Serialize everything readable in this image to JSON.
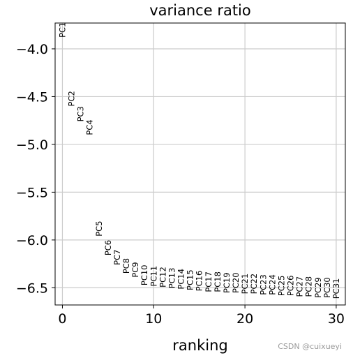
{
  "chart_data": {
    "type": "scatter",
    "title": "variance ratio",
    "xlabel": "ranking",
    "ylabel": "",
    "xlim": [
      -0.8,
      31.0
    ],
    "ylim": [
      -6.68,
      -3.73
    ],
    "grid": true,
    "xticks": [
      0,
      10,
      20,
      30
    ],
    "xtick_labels": [
      "0",
      "10",
      "20",
      "30"
    ],
    "yticks": [
      -4.0,
      -4.5,
      -5.0,
      -5.5,
      -6.0,
      -6.5
    ],
    "ytick_labels": [
      "−4.0",
      "−4.5",
      "−5.0",
      "−5.5",
      "−6.0",
      "−6.5"
    ],
    "points": [
      {
        "label": "PC1",
        "x": 0,
        "y": -3.72
      },
      {
        "label": "PC2",
        "x": 1,
        "y": -4.44
      },
      {
        "label": "PC3",
        "x": 2,
        "y": -4.6
      },
      {
        "label": "PC4",
        "x": 3,
        "y": -4.74
      },
      {
        "label": "PC5",
        "x": 4,
        "y": -5.8
      },
      {
        "label": "PC6",
        "x": 5,
        "y": -6.0
      },
      {
        "label": "PC7",
        "x": 6,
        "y": -6.1
      },
      {
        "label": "PC8",
        "x": 7,
        "y": -6.19
      },
      {
        "label": "PC9",
        "x": 8,
        "y": -6.23
      },
      {
        "label": "PC10",
        "x": 9,
        "y": -6.26
      },
      {
        "label": "PC11",
        "x": 10,
        "y": -6.27
      },
      {
        "label": "PC12",
        "x": 11,
        "y": -6.28
      },
      {
        "label": "PC13",
        "x": 12,
        "y": -6.29
      },
      {
        "label": "PC14",
        "x": 13,
        "y": -6.3
      },
      {
        "label": "PC15",
        "x": 14,
        "y": -6.31
      },
      {
        "label": "PC16",
        "x": 15,
        "y": -6.32
      },
      {
        "label": "PC17",
        "x": 16,
        "y": -6.33
      },
      {
        "label": "PC18",
        "x": 17,
        "y": -6.33
      },
      {
        "label": "PC19",
        "x": 18,
        "y": -6.34
      },
      {
        "label": "PC20",
        "x": 19,
        "y": -6.34
      },
      {
        "label": "PC21",
        "x": 20,
        "y": -6.35
      },
      {
        "label": "PC22",
        "x": 21,
        "y": -6.35
      },
      {
        "label": "PC23",
        "x": 22,
        "y": -6.36
      },
      {
        "label": "PC24",
        "x": 23,
        "y": -6.36
      },
      {
        "label": "PC25",
        "x": 24,
        "y": -6.37
      },
      {
        "label": "PC26",
        "x": 25,
        "y": -6.37
      },
      {
        "label": "PC27",
        "x": 26,
        "y": -6.38
      },
      {
        "label": "PC28",
        "x": 27,
        "y": -6.38
      },
      {
        "label": "PC29",
        "x": 28,
        "y": -6.39
      },
      {
        "label": "PC30",
        "x": 29,
        "y": -6.39
      },
      {
        "label": "PC31",
        "x": 30,
        "y": -6.4
      }
    ]
  },
  "watermark": "CSDN @cuixueyi"
}
